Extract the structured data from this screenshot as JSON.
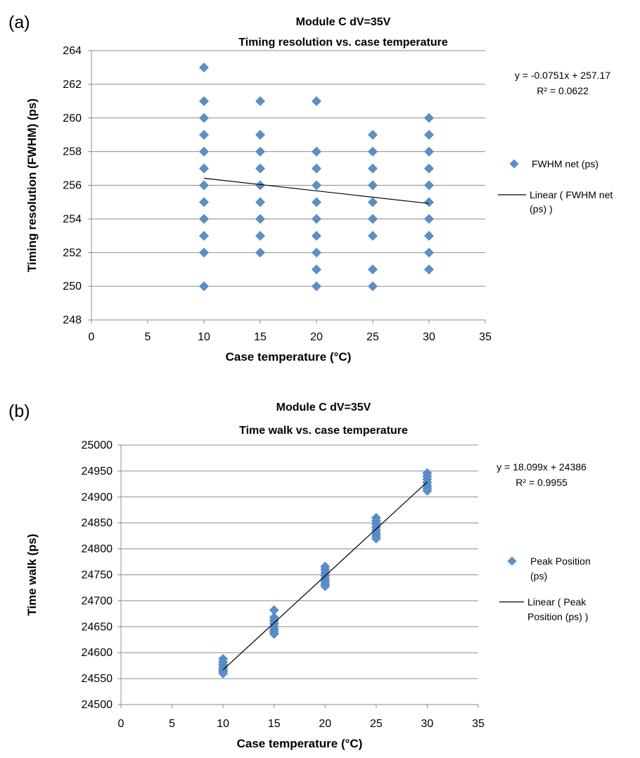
{
  "chart_data": [
    {
      "type": "scatter",
      "panel_label": "(a)",
      "title_lines": [
        "Module C dV=35V",
        "Timing resolution vs. case temperature"
      ],
      "xlabel": "Case temperature (°C)",
      "ylabel": "Timing resolution (FWHM) (ps)",
      "xlim": [
        0,
        35
      ],
      "ylim": [
        248,
        264
      ],
      "xticks": [
        "0",
        "5",
        "10",
        "15",
        "20",
        "25",
        "30",
        "35"
      ],
      "yticks": [
        "248",
        "250",
        "252",
        "254",
        "256",
        "258",
        "260",
        "262",
        "264"
      ],
      "grid": true,
      "series": [
        {
          "name": "FWHM net (ps)",
          "marker": "diamond",
          "color": "#5b8fc9",
          "points": [
            [
              10,
              263
            ],
            [
              10,
              261
            ],
            [
              10,
              260
            ],
            [
              10,
              259
            ],
            [
              10,
              258
            ],
            [
              10,
              257
            ],
            [
              10,
              256
            ],
            [
              10,
              255
            ],
            [
              10,
              254
            ],
            [
              10,
              253
            ],
            [
              10,
              252
            ],
            [
              10,
              250
            ],
            [
              15,
              261
            ],
            [
              15,
              259
            ],
            [
              15,
              258
            ],
            [
              15,
              257
            ],
            [
              15,
              256
            ],
            [
              15,
              255
            ],
            [
              15,
              254
            ],
            [
              15,
              253
            ],
            [
              15,
              252
            ],
            [
              20,
              261
            ],
            [
              20,
              258
            ],
            [
              20,
              257
            ],
            [
              20,
              256
            ],
            [
              20,
              255
            ],
            [
              20,
              254
            ],
            [
              20,
              253
            ],
            [
              20,
              252
            ],
            [
              20,
              251
            ],
            [
              20,
              250
            ],
            [
              25,
              259
            ],
            [
              25,
              258
            ],
            [
              25,
              257
            ],
            [
              25,
              256
            ],
            [
              25,
              255
            ],
            [
              25,
              254
            ],
            [
              25,
              253
            ],
            [
              25,
              251
            ],
            [
              25,
              250
            ],
            [
              30,
              260
            ],
            [
              30,
              259
            ],
            [
              30,
              258
            ],
            [
              30,
              257
            ],
            [
              30,
              256
            ],
            [
              30,
              255
            ],
            [
              30,
              254
            ],
            [
              30,
              253
            ],
            [
              30,
              252
            ],
            [
              30,
              251
            ]
          ]
        }
      ],
      "trendline": {
        "slope": -0.0751,
        "intercept": 257.17,
        "x_range": [
          10,
          30
        ],
        "color": "#000000"
      },
      "legend": {
        "placement": "right",
        "marker_lines": [
          "FWHM net (ps)"
        ],
        "trend_lines": [
          "Linear ( FWHM net",
          "(ps) )"
        ]
      },
      "equation": {
        "line1": "y = -0.0751x + 257.17",
        "line2": "R² = 0.0622"
      }
    },
    {
      "type": "scatter",
      "panel_label": "(b)",
      "title_lines": [
        "Module C dV=35V",
        "Time walk vs. case temperature"
      ],
      "xlabel": "Case temperature (°C)",
      "ylabel": "Time walk (ps)",
      "xlim": [
        0,
        35
      ],
      "ylim": [
        24500,
        25000
      ],
      "xticks": [
        "0",
        "5",
        "10",
        "15",
        "20",
        "25",
        "30",
        "35"
      ],
      "yticks": [
        "24500",
        "24550",
        "24600",
        "24650",
        "24700",
        "24750",
        "24800",
        "24850",
        "24900",
        "24950",
        "25000"
      ],
      "grid": true,
      "series": [
        {
          "name": "Peak Position (ps)",
          "marker": "diamond",
          "color": "#5b8fc9",
          "points": [
            [
              10,
              24588
            ],
            [
              10,
              24582
            ],
            [
              10,
              24577
            ],
            [
              10,
              24572
            ],
            [
              10,
              24568
            ],
            [
              10,
              24564
            ],
            [
              10,
              24560
            ],
            [
              15,
              24682
            ],
            [
              15,
              24668
            ],
            [
              15,
              24662
            ],
            [
              15,
              24656
            ],
            [
              15,
              24650
            ],
            [
              15,
              24645
            ],
            [
              15,
              24640
            ],
            [
              15,
              24636
            ],
            [
              20,
              24766
            ],
            [
              20,
              24760
            ],
            [
              20,
              24754
            ],
            [
              20,
              24748
            ],
            [
              20,
              24742
            ],
            [
              20,
              24737
            ],
            [
              20,
              24732
            ],
            [
              20,
              24728
            ],
            [
              25,
              24860
            ],
            [
              25,
              24854
            ],
            [
              25,
              24848
            ],
            [
              25,
              24842
            ],
            [
              25,
              24836
            ],
            [
              25,
              24830
            ],
            [
              25,
              24825
            ],
            [
              25,
              24820
            ],
            [
              30,
              24946
            ],
            [
              30,
              24940
            ],
            [
              30,
              24934
            ],
            [
              30,
              24928
            ],
            [
              30,
              24922
            ],
            [
              30,
              24917
            ],
            [
              30,
              24912
            ]
          ]
        }
      ],
      "trendline": {
        "slope": 18.099,
        "intercept": 24386,
        "x_range": [
          10,
          30
        ],
        "color": "#000000"
      },
      "legend": {
        "placement": "right",
        "marker_lines": [
          "Peak Position",
          "(ps)"
        ],
        "trend_lines": [
          "Linear ( Peak",
          "Position (ps) )"
        ]
      },
      "equation": {
        "line1": "y = 18.099x + 24386",
        "line2": "R² = 0.9955"
      }
    }
  ]
}
